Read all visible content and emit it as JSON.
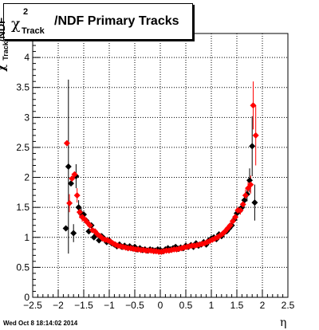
{
  "title": {
    "symbol": "χ",
    "sup": "2",
    "sub": "Track",
    "text": "/NDF  Primary Tracks"
  },
  "ylabel": {
    "symbol": "χ",
    "sup": "2",
    "sub": "Track",
    "text": "/NDF"
  },
  "xlabel": "η",
  "footer": "Wed Oct  8 18:14:02 2014",
  "chart_data": {
    "type": "scatter",
    "xlim": [
      -2.5,
      2.5
    ],
    "ylim": [
      0,
      4.4
    ],
    "x_ticks": [
      "−2.5",
      "−2",
      "−1.5",
      "−1",
      "−0.5",
      "0",
      "0.5",
      "1",
      "1.5",
      "2",
      "2.5"
    ],
    "y_ticks": [
      "0",
      "0.5",
      "1",
      "1.5",
      "2",
      "2.5",
      "3",
      "3.5",
      "4"
    ],
    "grid": true,
    "series": [
      {
        "color": "#000000",
        "points": [
          [
            -1.85,
            1.15,
            0.0
          ],
          [
            -1.8,
            2.18,
            1.45
          ],
          [
            -1.75,
            1.9,
            0.0
          ],
          [
            -1.7,
            1.07,
            0.15
          ],
          [
            -1.65,
            2.02,
            0.2
          ],
          [
            -1.6,
            1.5,
            0.12
          ],
          [
            -1.55,
            1.4,
            0.1
          ],
          [
            -1.5,
            1.38,
            0.05
          ],
          [
            -1.45,
            1.28,
            0.05
          ],
          [
            -1.4,
            1.1,
            0.03
          ],
          [
            -1.35,
            1.2,
            0.03
          ],
          [
            -1.3,
            1.0,
            0.03
          ],
          [
            -1.25,
            1.05,
            0.03
          ],
          [
            -1.2,
            0.95,
            0.02
          ],
          [
            -1.15,
            1.02,
            0.02
          ],
          [
            -1.1,
            0.98,
            0.02
          ],
          [
            -1.05,
            0.92,
            0.02
          ],
          [
            -1.0,
            0.95,
            0.02
          ],
          [
            -0.95,
            0.9,
            0.02
          ],
          [
            -0.9,
            0.88,
            0.02
          ],
          [
            -0.85,
            0.85,
            0.01
          ],
          [
            -0.8,
            0.88,
            0.01
          ],
          [
            -0.75,
            0.84,
            0.01
          ],
          [
            -0.7,
            0.86,
            0.01
          ],
          [
            -0.65,
            0.83,
            0.01
          ],
          [
            -0.6,
            0.85,
            0.01
          ],
          [
            -0.55,
            0.82,
            0.01
          ],
          [
            -0.5,
            0.84,
            0.01
          ],
          [
            -0.45,
            0.8,
            0.01
          ],
          [
            -0.4,
            0.82,
            0.01
          ],
          [
            -0.35,
            0.79,
            0.01
          ],
          [
            -0.3,
            0.8,
            0.01
          ],
          [
            -0.25,
            0.78,
            0.01
          ],
          [
            -0.2,
            0.8,
            0.01
          ],
          [
            -0.15,
            0.79,
            0.01
          ],
          [
            -0.1,
            0.78,
            0.01
          ],
          [
            -0.05,
            0.8,
            0.01
          ],
          [
            0.0,
            0.79,
            0.01
          ],
          [
            0.05,
            0.77,
            0.01
          ],
          [
            0.1,
            0.8,
            0.01
          ],
          [
            0.15,
            0.82,
            0.01
          ],
          [
            0.2,
            0.8,
            0.01
          ],
          [
            0.25,
            0.82,
            0.01
          ],
          [
            0.3,
            0.84,
            0.01
          ],
          [
            0.35,
            0.81,
            0.01
          ],
          [
            0.4,
            0.83,
            0.01
          ],
          [
            0.45,
            0.82,
            0.01
          ],
          [
            0.5,
            0.86,
            0.01
          ],
          [
            0.55,
            0.84,
            0.01
          ],
          [
            0.6,
            0.87,
            0.01
          ],
          [
            0.65,
            0.84,
            0.01
          ],
          [
            0.7,
            0.9,
            0.01
          ],
          [
            0.75,
            0.86,
            0.01
          ],
          [
            0.8,
            0.88,
            0.02
          ],
          [
            0.85,
            0.92,
            0.02
          ],
          [
            0.9,
            0.88,
            0.02
          ],
          [
            0.95,
            0.95,
            0.02
          ],
          [
            1.0,
            0.98,
            0.02
          ],
          [
            1.05,
            1.0,
            0.02
          ],
          [
            1.1,
            0.97,
            0.03
          ],
          [
            1.15,
            1.05,
            0.03
          ],
          [
            1.2,
            1.02,
            0.03
          ],
          [
            1.25,
            1.08,
            0.03
          ],
          [
            1.3,
            1.1,
            0.03
          ],
          [
            1.35,
            1.15,
            0.04
          ],
          [
            1.4,
            1.2,
            0.04
          ],
          [
            1.45,
            1.3,
            0.05
          ],
          [
            1.5,
            1.4,
            0.05
          ],
          [
            1.55,
            1.45,
            0.06
          ],
          [
            1.6,
            1.5,
            0.08
          ],
          [
            1.65,
            1.62,
            0.1
          ],
          [
            1.7,
            1.72,
            0.12
          ],
          [
            1.75,
            1.95,
            0.2
          ],
          [
            1.8,
            2.52,
            0.5
          ],
          [
            1.85,
            1.58,
            0.3
          ]
        ]
      },
      {
        "color": "#ff0000",
        "points": [
          [
            -1.83,
            2.57,
            0.0
          ],
          [
            -1.78,
            1.57,
            0.15
          ],
          [
            -1.73,
            1.98,
            0.0
          ],
          [
            -1.68,
            2.05,
            0.0
          ],
          [
            -1.63,
            1.7,
            0.12
          ],
          [
            -1.58,
            1.42,
            0.1
          ],
          [
            -1.53,
            1.34,
            0.08
          ],
          [
            -1.48,
            1.3,
            0.05
          ],
          [
            -1.43,
            1.25,
            0.05
          ],
          [
            -1.38,
            1.2,
            0.03
          ],
          [
            -1.33,
            1.12,
            0.03
          ],
          [
            -1.28,
            1.1,
            0.03
          ],
          [
            -1.23,
            1.05,
            0.03
          ],
          [
            -1.18,
            1.02,
            0.02
          ],
          [
            -1.13,
            0.98,
            0.02
          ],
          [
            -1.08,
            0.96,
            0.02
          ],
          [
            -1.03,
            0.95,
            0.02
          ],
          [
            -0.98,
            0.93,
            0.02
          ],
          [
            -0.93,
            0.9,
            0.02
          ],
          [
            -0.88,
            0.88,
            0.02
          ],
          [
            -0.83,
            0.86,
            0.01
          ],
          [
            -0.78,
            0.85,
            0.01
          ],
          [
            -0.73,
            0.84,
            0.01
          ],
          [
            -0.68,
            0.83,
            0.01
          ],
          [
            -0.63,
            0.82,
            0.01
          ],
          [
            -0.58,
            0.82,
            0.01
          ],
          [
            -0.53,
            0.81,
            0.01
          ],
          [
            -0.48,
            0.8,
            0.01
          ],
          [
            -0.43,
            0.8,
            0.01
          ],
          [
            -0.38,
            0.79,
            0.01
          ],
          [
            -0.33,
            0.79,
            0.01
          ],
          [
            -0.28,
            0.78,
            0.01
          ],
          [
            -0.23,
            0.78,
            0.01
          ],
          [
            -0.18,
            0.78,
            0.01
          ],
          [
            -0.13,
            0.77,
            0.01
          ],
          [
            -0.08,
            0.77,
            0.01
          ],
          [
            -0.03,
            0.76,
            0.01
          ],
          [
            0.02,
            0.76,
            0.01
          ],
          [
            0.07,
            0.77,
            0.01
          ],
          [
            0.12,
            0.78,
            0.01
          ],
          [
            0.17,
            0.78,
            0.01
          ],
          [
            0.22,
            0.79,
            0.01
          ],
          [
            0.27,
            0.8,
            0.01
          ],
          [
            0.32,
            0.8,
            0.01
          ],
          [
            0.37,
            0.81,
            0.01
          ],
          [
            0.42,
            0.82,
            0.01
          ],
          [
            0.47,
            0.83,
            0.01
          ],
          [
            0.52,
            0.84,
            0.01
          ],
          [
            0.57,
            0.85,
            0.01
          ],
          [
            0.62,
            0.86,
            0.01
          ],
          [
            0.67,
            0.86,
            0.01
          ],
          [
            0.72,
            0.87,
            0.01
          ],
          [
            0.77,
            0.88,
            0.02
          ],
          [
            0.82,
            0.89,
            0.02
          ],
          [
            0.87,
            0.9,
            0.02
          ],
          [
            0.92,
            0.92,
            0.02
          ],
          [
            0.97,
            0.94,
            0.02
          ],
          [
            1.02,
            0.96,
            0.02
          ],
          [
            1.07,
            0.98,
            0.03
          ],
          [
            1.12,
            1.0,
            0.03
          ],
          [
            1.17,
            1.03,
            0.03
          ],
          [
            1.22,
            1.06,
            0.03
          ],
          [
            1.27,
            1.1,
            0.03
          ],
          [
            1.32,
            1.15,
            0.04
          ],
          [
            1.37,
            1.2,
            0.04
          ],
          [
            1.42,
            1.27,
            0.05
          ],
          [
            1.47,
            1.34,
            0.05
          ],
          [
            1.52,
            1.45,
            0.06
          ],
          [
            1.57,
            1.45,
            0.07
          ],
          [
            1.62,
            1.55,
            0.08
          ],
          [
            1.67,
            1.7,
            0.1
          ],
          [
            1.72,
            1.82,
            0.12
          ],
          [
            1.77,
            1.88,
            0.15
          ],
          [
            1.82,
            3.2,
            0.4
          ],
          [
            1.87,
            2.7,
            0.5
          ]
        ]
      }
    ]
  }
}
